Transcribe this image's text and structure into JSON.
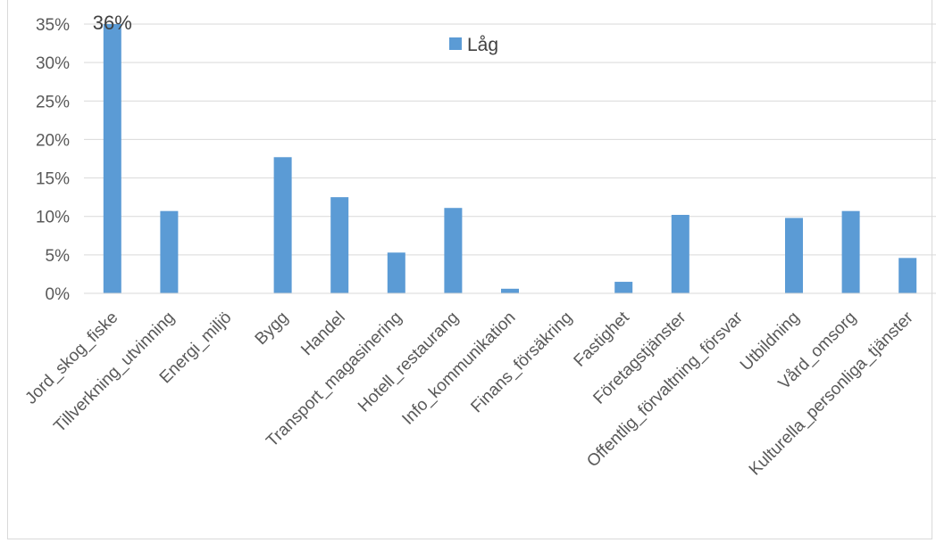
{
  "chart_data": {
    "type": "bar",
    "categories": [
      "Jord_skog_fiske",
      "Tillverkning_utvinning",
      "Energi_miljö",
      "Bygg",
      "Handel",
      "Transport_magasinering",
      "Hotell_restaurang",
      "Info_kommunikation",
      "Finans_försäkring",
      "Fastighet",
      "Företagstjänster",
      "Offentlig_förvaltning_försvar",
      "Utbildning",
      "Vård_omsorg",
      "Kulturella_personliga_tjänster"
    ],
    "series": [
      {
        "name": "Låg",
        "values": [
          36,
          10.7,
          0,
          17.7,
          12.5,
          5.3,
          11.1,
          0.6,
          0,
          1.5,
          10.2,
          0,
          9.8,
          10.7,
          4.6
        ],
        "color": "#5b9bd5"
      }
    ],
    "data_labels": [
      {
        "index": 0,
        "text": "36%"
      }
    ],
    "yticks": [
      "0%",
      "5%",
      "10%",
      "15%",
      "20%",
      "25%",
      "30%",
      "35%"
    ],
    "ylim": [
      0,
      35
    ],
    "grid": true,
    "legend_position": "top-center"
  }
}
